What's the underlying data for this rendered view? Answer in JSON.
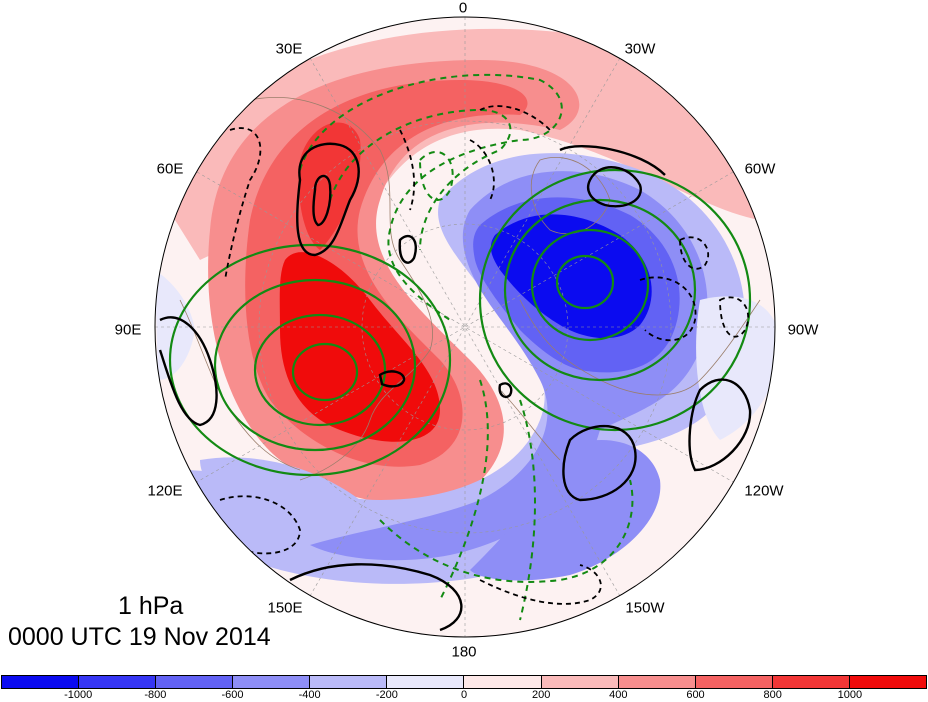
{
  "title": {
    "level": "1 hPa",
    "date": "0000 UTC 19 Nov 2014"
  },
  "longitude_labels": {
    "lon_0": "0",
    "lon_30w": "30W",
    "lon_60w": "60W",
    "lon_90w": "90W",
    "lon_120w": "120W",
    "lon_150w": "150W",
    "lon_180": "180",
    "lon_150e": "150E",
    "lon_120e": "120E",
    "lon_90e": "90E",
    "lon_60e": "60E",
    "lon_30e": "30E"
  },
  "colorbar": {
    "ticks": [
      "-1000",
      "-800",
      "-600",
      "-400",
      "-200",
      "0",
      "200",
      "400",
      "600",
      "800",
      "1000"
    ],
    "colors": [
      "#0b0bf0",
      "#3636f4",
      "#6262f4",
      "#8e8ef6",
      "#babaf8",
      "#e8e8fb",
      "#fde8e8",
      "#fababa",
      "#f78e8e",
      "#f46262",
      "#f23636",
      "#f00b0b"
    ]
  },
  "map": {
    "projection": "north-polar-stereographic",
    "shaded_field_colors": {
      "strong_positive": "#f00b0b",
      "strong_negative": "#0b0bf0"
    },
    "contour_colors": {
      "black": "#000000",
      "green": "#138a13",
      "coastline": "#9a7d6a"
    }
  }
}
